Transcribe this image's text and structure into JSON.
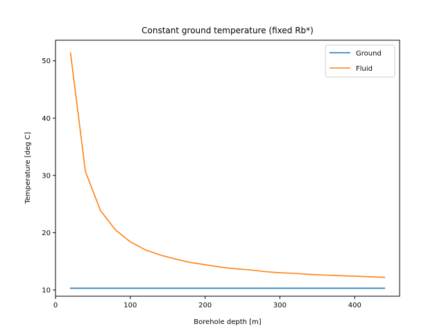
{
  "chart_data": {
    "type": "line",
    "title": "Constant ground temperature (fixed Rb*)",
    "xlabel": "Borehole depth [m]",
    "ylabel": "Temperature [deg C]",
    "xlim": [
      0,
      460
    ],
    "ylim": [
      8.9,
      53.6
    ],
    "x_ticks": [
      0,
      100,
      200,
      300,
      400
    ],
    "y_ticks": [
      10,
      20,
      30,
      40,
      50
    ],
    "grid": false,
    "legend_position": "top-right",
    "x": [
      20,
      40,
      60,
      80,
      100,
      120,
      140,
      160,
      180,
      200,
      220,
      240,
      260,
      280,
      300,
      320,
      340,
      360,
      380,
      400,
      420,
      440
    ],
    "series": [
      {
        "name": "Ground",
        "color": "#1f77b4",
        "values": [
          10.3,
          10.3,
          10.3,
          10.3,
          10.3,
          10.3,
          10.3,
          10.3,
          10.3,
          10.3,
          10.3,
          10.3,
          10.3,
          10.3,
          10.3,
          10.3,
          10.3,
          10.3,
          10.3,
          10.3,
          10.3,
          10.3
        ]
      },
      {
        "name": "Fluid",
        "color": "#ff7f0e",
        "values": [
          51.4,
          30.7,
          23.9,
          20.5,
          18.4,
          17.0,
          16.1,
          15.4,
          14.8,
          14.4,
          14.0,
          13.7,
          13.5,
          13.2,
          13.0,
          12.9,
          12.7,
          12.6,
          12.5,
          12.4,
          12.3,
          12.2
        ]
      }
    ]
  }
}
